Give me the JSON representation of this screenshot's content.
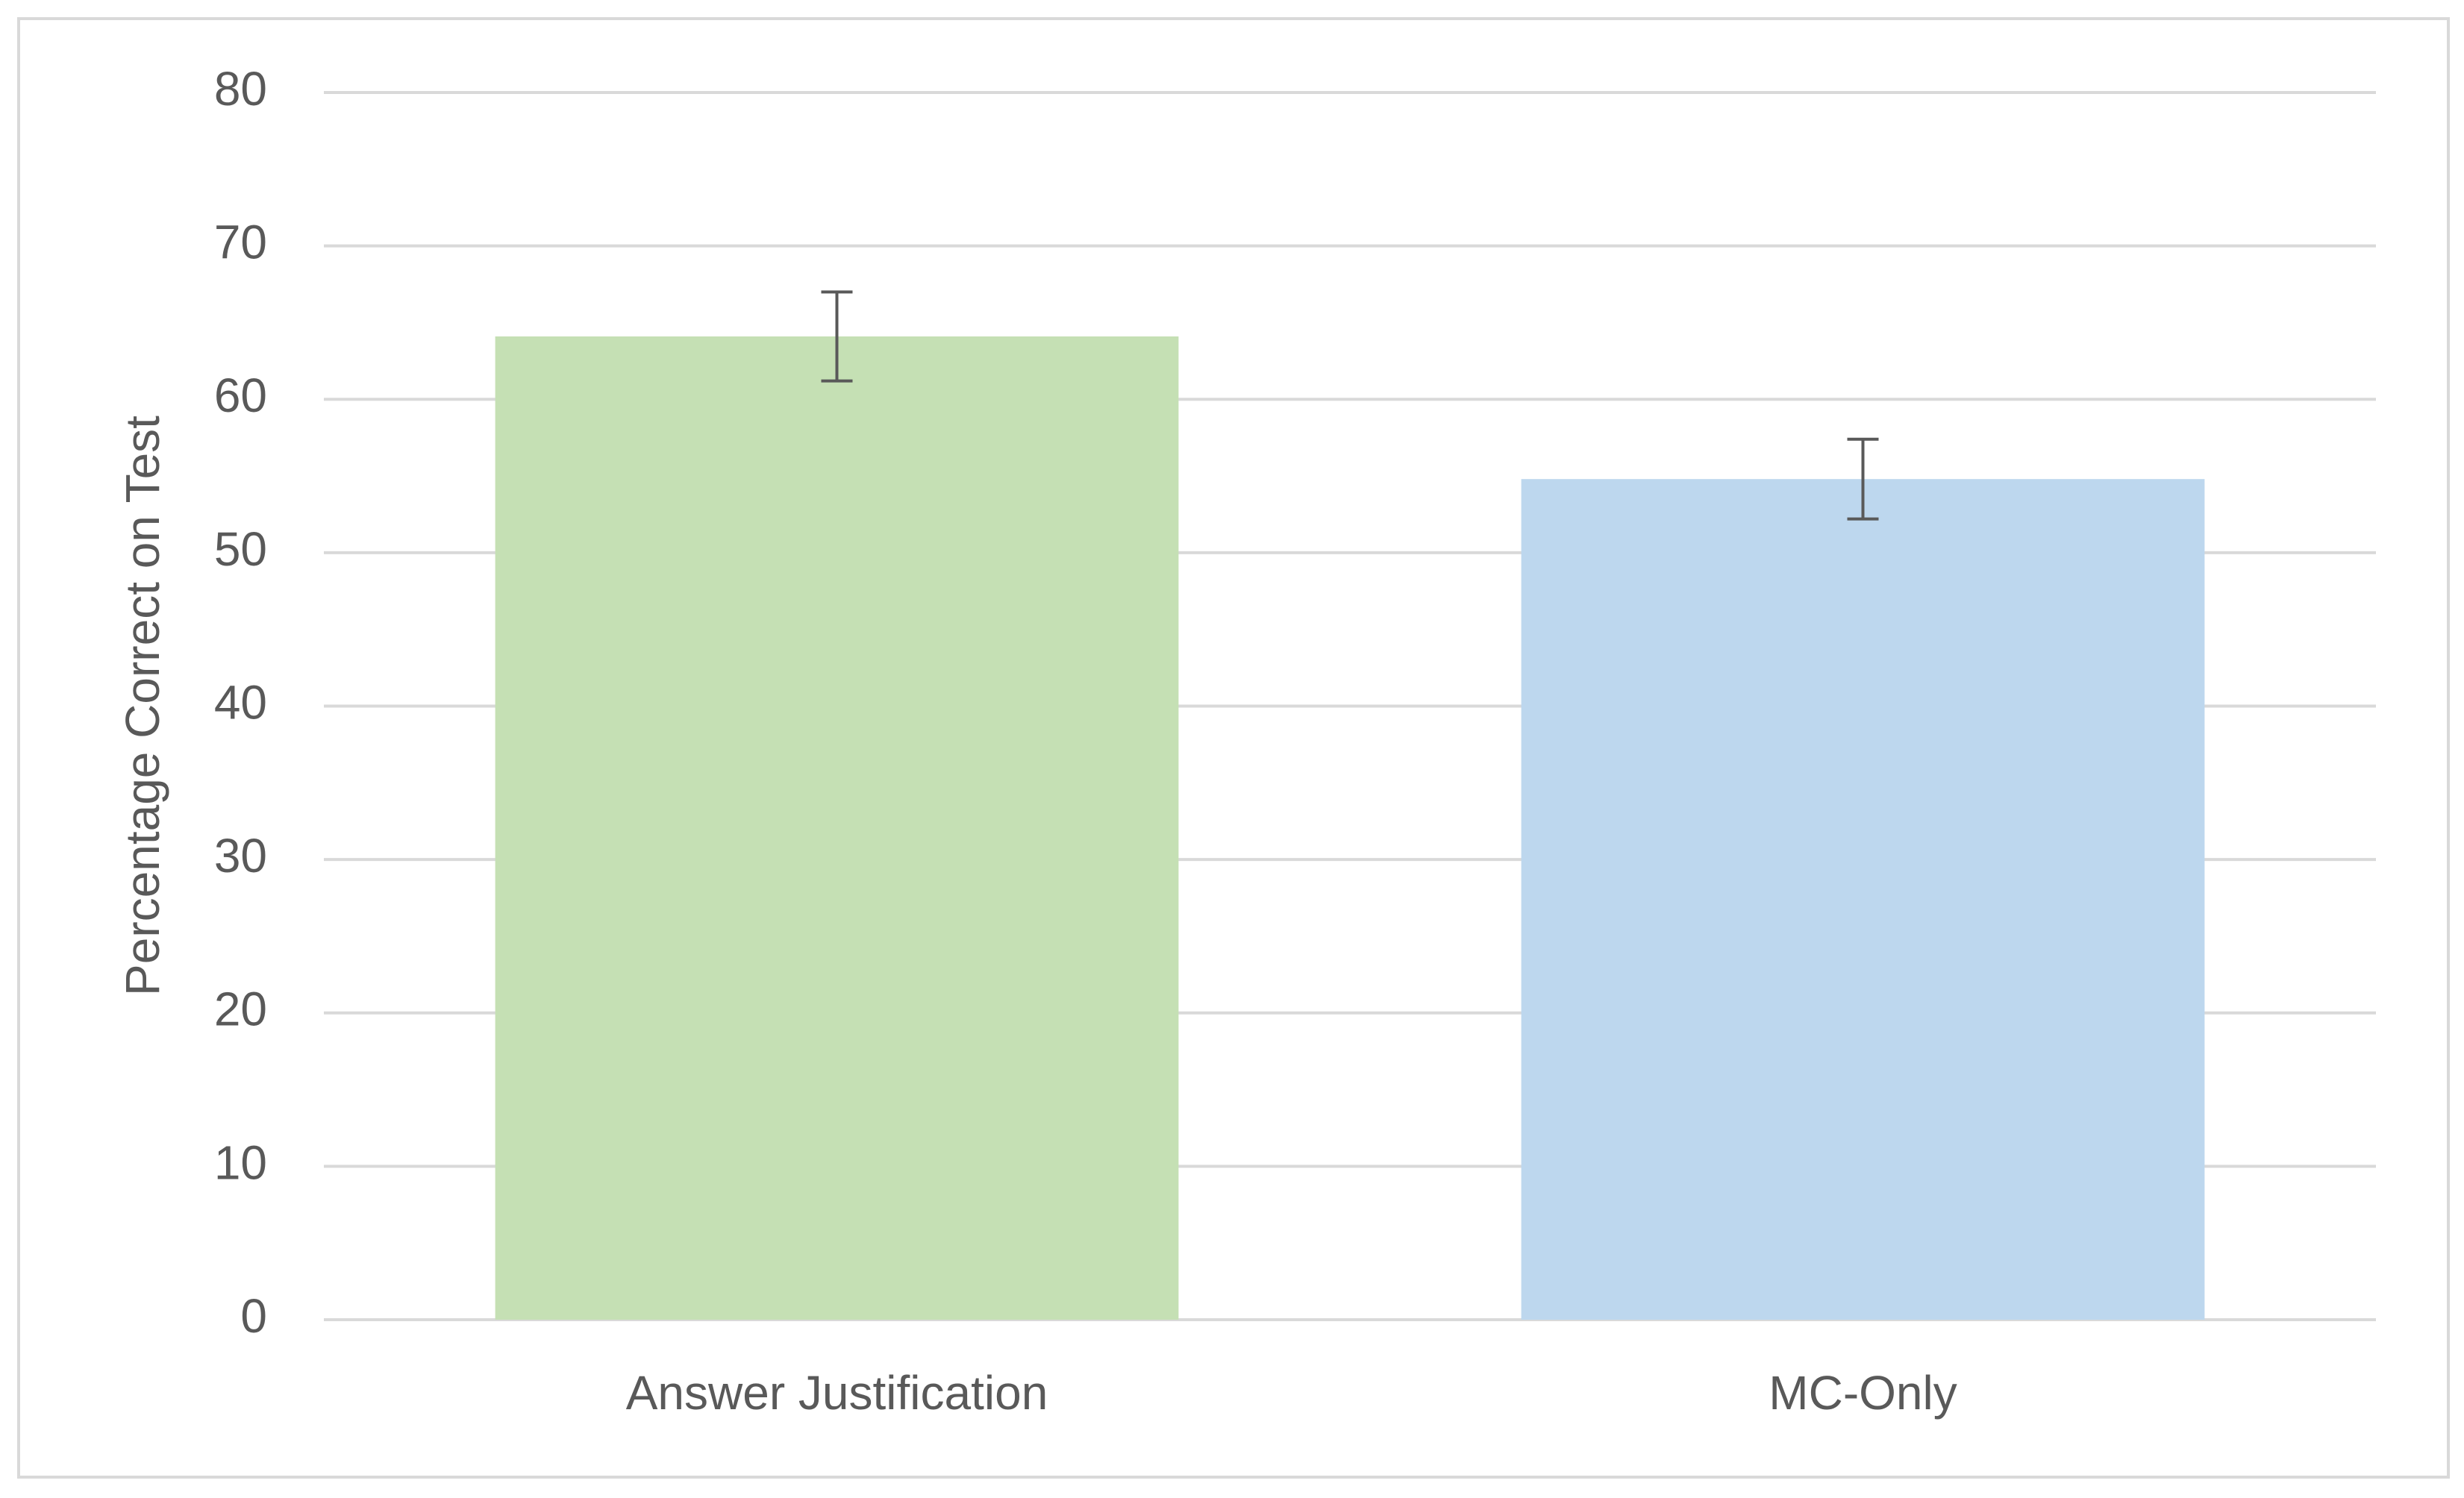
{
  "chart_data": {
    "type": "bar",
    "y_axis_label": "Percentage Correct on Test",
    "categories": [
      "Answer Justification",
      "MC-Only"
    ],
    "values": [
      64.1,
      54.8
    ],
    "errors": [
      2.9,
      2.6
    ],
    "colors": [
      "#c5e0b4",
      "#bdd7ee"
    ],
    "ylim": [
      0,
      80
    ],
    "yticks": [
      0,
      10,
      20,
      30,
      40,
      50,
      60,
      70,
      80
    ],
    "grid": true
  }
}
